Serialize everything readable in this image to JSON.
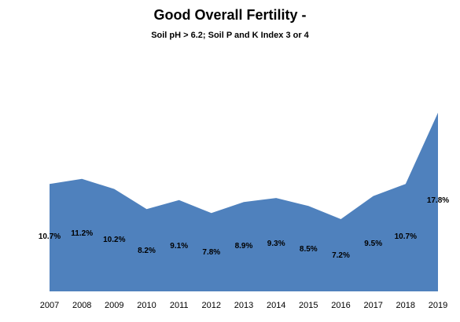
{
  "chart_data": {
    "type": "area",
    "title": "Good Overall Fertility -",
    "subtitle": "Soil pH > 6.2;  Soil P and K Index 3 or 4",
    "xlabel": "",
    "ylabel": "",
    "grid": false,
    "legend": "none",
    "color": "#4f81bd",
    "categories": [
      "2007",
      "2008",
      "2009",
      "2010",
      "2011",
      "2012",
      "2013",
      "2014",
      "2015",
      "2016",
      "2017",
      "2018",
      "2019"
    ],
    "values": [
      10.7,
      11.2,
      10.2,
      8.2,
      9.1,
      7.8,
      8.9,
      9.3,
      8.5,
      7.2,
      9.5,
      10.7,
      17.8
    ],
    "data_labels": [
      "10.7%",
      "11.2%",
      "10.2%",
      "8.2%",
      "9.1%",
      "7.8%",
      "8.9%",
      "9.3%",
      "8.5%",
      "7.2%",
      "9.5%",
      "10.7%",
      "17.8%"
    ],
    "ylim": [
      0,
      20
    ]
  }
}
